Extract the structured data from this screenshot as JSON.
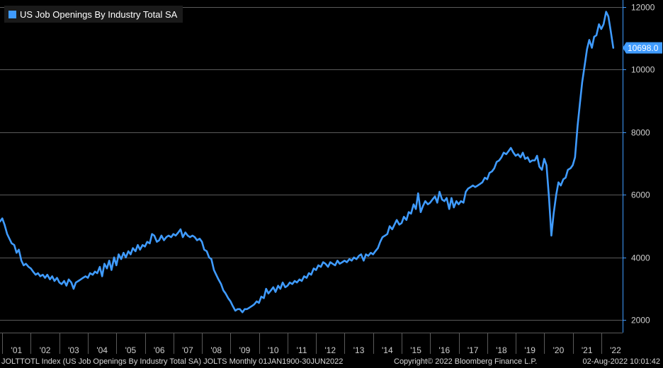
{
  "legend": {
    "label": "US Job Openings By Industry Total SA"
  },
  "footer": {
    "left": "JOLTTOTL Index (US Job Openings By Industry Total SA) JOLTS  Monthly 01JAN1900-30JUN2022",
    "center": "Copyright© 2022 Bloomberg Finance L.P.",
    "right": "02-Aug-2022 10:01:42"
  },
  "colors": {
    "series": "#3f9bff",
    "grid": "#5a5a5a",
    "axis": "#3f9bff",
    "background": "#000000"
  },
  "chart_data": {
    "type": "line",
    "ylim": [
      1600,
      12000
    ],
    "yticks": [
      2000,
      4000,
      6000,
      8000,
      10000,
      12000
    ],
    "ytick_labels": [
      "2000",
      "4000",
      "6000",
      "8000",
      "10000",
      "12000"
    ],
    "xlim": [
      2000.92,
      2022.6
    ],
    "xtick_labels": [
      "'01",
      "'02",
      "'03",
      "'04",
      "'05",
      "'06",
      "'07",
      "'08",
      "'09",
      "'10",
      "'11",
      "'12",
      "'13",
      "'14",
      "'15",
      "'16",
      "'17",
      "'18",
      "'19",
      "'20",
      "'21",
      "'22"
    ],
    "xtick_years": [
      2001,
      2002,
      2003,
      2004,
      2005,
      2006,
      2007,
      2008,
      2009,
      2010,
      2011,
      2012,
      2013,
      2014,
      2015,
      2016,
      2017,
      2018,
      2019,
      2020,
      2021,
      2022
    ],
    "last_value_label": "10698.0",
    "series": [
      {
        "points": [
          [
            2000.92,
            5150
          ],
          [
            2001.0,
            5250
          ],
          [
            2001.08,
            5050
          ],
          [
            2001.17,
            4750
          ],
          [
            2001.25,
            4600
          ],
          [
            2001.33,
            4450
          ],
          [
            2001.42,
            4400
          ],
          [
            2001.5,
            4150
          ],
          [
            2001.58,
            4250
          ],
          [
            2001.67,
            3900
          ],
          [
            2001.75,
            3750
          ],
          [
            2001.83,
            3800
          ],
          [
            2001.92,
            3700
          ],
          [
            2002.0,
            3650
          ],
          [
            2002.08,
            3550
          ],
          [
            2002.17,
            3450
          ],
          [
            2002.25,
            3500
          ],
          [
            2002.33,
            3400
          ],
          [
            2002.42,
            3450
          ],
          [
            2002.5,
            3350
          ],
          [
            2002.58,
            3450
          ],
          [
            2002.67,
            3300
          ],
          [
            2002.75,
            3400
          ],
          [
            2002.83,
            3250
          ],
          [
            2002.92,
            3350
          ],
          [
            2003.0,
            3200
          ],
          [
            2003.08,
            3150
          ],
          [
            2003.17,
            3250
          ],
          [
            2003.25,
            3100
          ],
          [
            2003.33,
            3300
          ],
          [
            2003.42,
            3200
          ],
          [
            2003.5,
            3000
          ],
          [
            2003.58,
            3200
          ],
          [
            2003.67,
            3250
          ],
          [
            2003.75,
            3300
          ],
          [
            2003.83,
            3350
          ],
          [
            2003.92,
            3400
          ],
          [
            2004.0,
            3350
          ],
          [
            2004.08,
            3500
          ],
          [
            2004.17,
            3450
          ],
          [
            2004.25,
            3550
          ],
          [
            2004.33,
            3500
          ],
          [
            2004.42,
            3700
          ],
          [
            2004.5,
            3400
          ],
          [
            2004.58,
            3800
          ],
          [
            2004.67,
            3650
          ],
          [
            2004.75,
            3900
          ],
          [
            2004.83,
            3600
          ],
          [
            2004.92,
            4000
          ],
          [
            2005.0,
            3750
          ],
          [
            2005.08,
            4100
          ],
          [
            2005.17,
            3950
          ],
          [
            2005.25,
            4150
          ],
          [
            2005.33,
            4000
          ],
          [
            2005.42,
            4200
          ],
          [
            2005.5,
            4100
          ],
          [
            2005.58,
            4300
          ],
          [
            2005.67,
            4200
          ],
          [
            2005.75,
            4400
          ],
          [
            2005.83,
            4250
          ],
          [
            2005.92,
            4400
          ],
          [
            2006.0,
            4350
          ],
          [
            2006.08,
            4500
          ],
          [
            2006.17,
            4450
          ],
          [
            2006.25,
            4750
          ],
          [
            2006.33,
            4700
          ],
          [
            2006.42,
            4500
          ],
          [
            2006.5,
            4550
          ],
          [
            2006.58,
            4700
          ],
          [
            2006.67,
            4550
          ],
          [
            2006.75,
            4650
          ],
          [
            2006.83,
            4700
          ],
          [
            2006.92,
            4650
          ],
          [
            2007.0,
            4750
          ],
          [
            2007.08,
            4700
          ],
          [
            2007.17,
            4800
          ],
          [
            2007.25,
            4900
          ],
          [
            2007.33,
            4650
          ],
          [
            2007.42,
            4800
          ],
          [
            2007.5,
            4700
          ],
          [
            2007.58,
            4650
          ],
          [
            2007.67,
            4700
          ],
          [
            2007.75,
            4650
          ],
          [
            2007.83,
            4550
          ],
          [
            2007.92,
            4600
          ],
          [
            2008.0,
            4500
          ],
          [
            2008.08,
            4250
          ],
          [
            2008.17,
            4200
          ],
          [
            2008.25,
            4000
          ],
          [
            2008.33,
            3950
          ],
          [
            2008.42,
            3600
          ],
          [
            2008.5,
            3450
          ],
          [
            2008.58,
            3300
          ],
          [
            2008.67,
            3150
          ],
          [
            2008.75,
            2950
          ],
          [
            2008.83,
            2850
          ],
          [
            2008.92,
            2700
          ],
          [
            2009.0,
            2600
          ],
          [
            2009.08,
            2450
          ],
          [
            2009.17,
            2300
          ],
          [
            2009.25,
            2350
          ],
          [
            2009.33,
            2350
          ],
          [
            2009.42,
            2250
          ],
          [
            2009.5,
            2350
          ],
          [
            2009.58,
            2350
          ],
          [
            2009.67,
            2400
          ],
          [
            2009.75,
            2450
          ],
          [
            2009.83,
            2500
          ],
          [
            2009.92,
            2600
          ],
          [
            2010.0,
            2550
          ],
          [
            2010.08,
            2750
          ],
          [
            2010.17,
            2700
          ],
          [
            2010.25,
            3000
          ],
          [
            2010.33,
            2850
          ],
          [
            2010.42,
            2950
          ],
          [
            2010.5,
            3050
          ],
          [
            2010.58,
            2900
          ],
          [
            2010.67,
            3100
          ],
          [
            2010.75,
            3000
          ],
          [
            2010.83,
            3200
          ],
          [
            2010.92,
            3050
          ],
          [
            2011.0,
            3100
          ],
          [
            2011.08,
            3200
          ],
          [
            2011.17,
            3150
          ],
          [
            2011.25,
            3250
          ],
          [
            2011.33,
            3200
          ],
          [
            2011.42,
            3300
          ],
          [
            2011.5,
            3250
          ],
          [
            2011.58,
            3400
          ],
          [
            2011.67,
            3350
          ],
          [
            2011.75,
            3500
          ],
          [
            2011.83,
            3450
          ],
          [
            2011.92,
            3650
          ],
          [
            2012.0,
            3600
          ],
          [
            2012.08,
            3750
          ],
          [
            2012.17,
            3700
          ],
          [
            2012.25,
            3850
          ],
          [
            2012.33,
            3800
          ],
          [
            2012.42,
            3700
          ],
          [
            2012.5,
            3850
          ],
          [
            2012.58,
            3800
          ],
          [
            2012.67,
            3750
          ],
          [
            2012.75,
            3900
          ],
          [
            2012.83,
            3800
          ],
          [
            2012.92,
            3850
          ],
          [
            2013.0,
            3900
          ],
          [
            2013.08,
            3850
          ],
          [
            2013.17,
            3950
          ],
          [
            2013.25,
            3900
          ],
          [
            2013.33,
            4000
          ],
          [
            2013.42,
            3950
          ],
          [
            2013.5,
            4050
          ],
          [
            2013.58,
            4100
          ],
          [
            2013.67,
            3900
          ],
          [
            2013.75,
            4100
          ],
          [
            2013.83,
            4050
          ],
          [
            2013.92,
            4150
          ],
          [
            2014.0,
            4100
          ],
          [
            2014.08,
            4200
          ],
          [
            2014.17,
            4300
          ],
          [
            2014.25,
            4500
          ],
          [
            2014.33,
            4650
          ],
          [
            2014.42,
            4700
          ],
          [
            2014.5,
            4750
          ],
          [
            2014.58,
            5000
          ],
          [
            2014.67,
            4900
          ],
          [
            2014.75,
            5050
          ],
          [
            2014.83,
            5200
          ],
          [
            2014.92,
            5050
          ],
          [
            2015.0,
            5100
          ],
          [
            2015.08,
            5300
          ],
          [
            2015.17,
            5200
          ],
          [
            2015.25,
            5450
          ],
          [
            2015.33,
            5400
          ],
          [
            2015.42,
            5700
          ],
          [
            2015.5,
            5550
          ],
          [
            2015.58,
            6050
          ],
          [
            2015.67,
            5450
          ],
          [
            2015.75,
            5650
          ],
          [
            2015.83,
            5800
          ],
          [
            2015.92,
            5700
          ],
          [
            2016.0,
            5750
          ],
          [
            2016.08,
            5850
          ],
          [
            2016.17,
            5950
          ],
          [
            2016.25,
            5750
          ],
          [
            2016.33,
            6100
          ],
          [
            2016.42,
            5850
          ],
          [
            2016.5,
            5800
          ],
          [
            2016.58,
            5900
          ],
          [
            2016.67,
            5550
          ],
          [
            2016.75,
            5900
          ],
          [
            2016.83,
            5600
          ],
          [
            2016.92,
            5800
          ],
          [
            2017.0,
            5700
          ],
          [
            2017.08,
            5800
          ],
          [
            2017.17,
            5750
          ],
          [
            2017.25,
            6100
          ],
          [
            2017.33,
            6200
          ],
          [
            2017.42,
            6250
          ],
          [
            2017.5,
            6300
          ],
          [
            2017.58,
            6250
          ],
          [
            2017.67,
            6300
          ],
          [
            2017.75,
            6350
          ],
          [
            2017.83,
            6400
          ],
          [
            2017.92,
            6550
          ],
          [
            2018.0,
            6500
          ],
          [
            2018.08,
            6700
          ],
          [
            2018.17,
            6750
          ],
          [
            2018.25,
            6850
          ],
          [
            2018.33,
            7050
          ],
          [
            2018.42,
            7100
          ],
          [
            2018.5,
            7200
          ],
          [
            2018.58,
            7350
          ],
          [
            2018.67,
            7300
          ],
          [
            2018.75,
            7400
          ],
          [
            2018.83,
            7500
          ],
          [
            2018.92,
            7350
          ],
          [
            2019.0,
            7250
          ],
          [
            2019.08,
            7300
          ],
          [
            2019.17,
            7200
          ],
          [
            2019.25,
            7350
          ],
          [
            2019.33,
            7150
          ],
          [
            2019.42,
            7200
          ],
          [
            2019.5,
            7050
          ],
          [
            2019.58,
            7100
          ],
          [
            2019.67,
            7100
          ],
          [
            2019.75,
            7250
          ],
          [
            2019.83,
            6900
          ],
          [
            2019.92,
            6800
          ],
          [
            2020.0,
            7150
          ],
          [
            2020.08,
            6950
          ],
          [
            2020.17,
            5900
          ],
          [
            2020.25,
            4700
          ],
          [
            2020.33,
            5400
          ],
          [
            2020.42,
            6000
          ],
          [
            2020.5,
            6400
          ],
          [
            2020.58,
            6300
          ],
          [
            2020.67,
            6500
          ],
          [
            2020.75,
            6550
          ],
          [
            2020.83,
            6800
          ],
          [
            2020.92,
            6850
          ],
          [
            2021.0,
            6950
          ],
          [
            2021.08,
            7200
          ],
          [
            2021.17,
            8200
          ],
          [
            2021.25,
            8900
          ],
          [
            2021.33,
            9600
          ],
          [
            2021.42,
            10150
          ],
          [
            2021.5,
            10650
          ],
          [
            2021.58,
            10950
          ],
          [
            2021.67,
            10700
          ],
          [
            2021.75,
            11050
          ],
          [
            2021.83,
            11100
          ],
          [
            2021.92,
            11450
          ],
          [
            2022.0,
            11300
          ],
          [
            2022.08,
            11450
          ],
          [
            2022.17,
            11850
          ],
          [
            2022.25,
            11700
          ],
          [
            2022.33,
            11250
          ],
          [
            2022.42,
            10698
          ]
        ]
      }
    ]
  }
}
